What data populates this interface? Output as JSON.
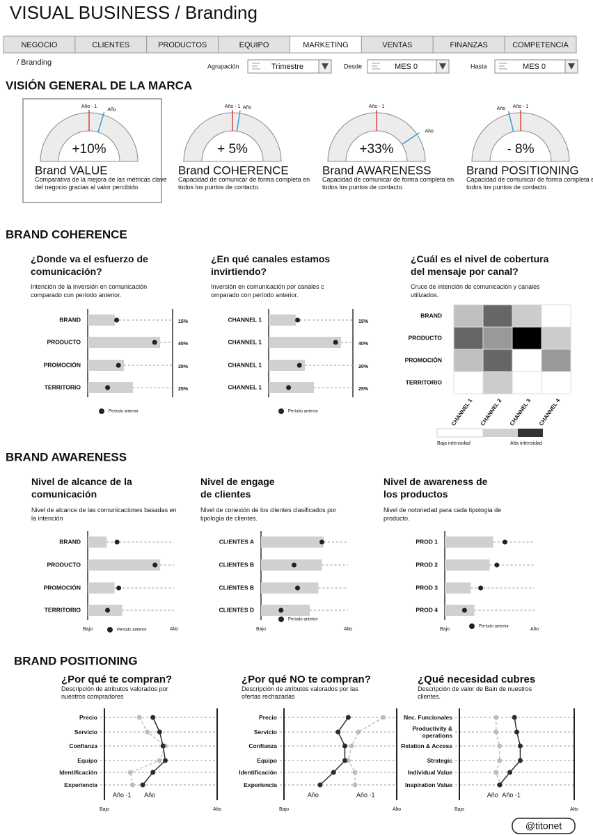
{
  "header": {
    "title": "VISUAL BUSINESS / Branding",
    "breadcrumb": "/ Branding"
  },
  "tabs": {
    "items": [
      "NEGOCIO",
      "CLIENTES",
      "PRODUCTOS",
      "EQUIPO",
      "MARKETING",
      "VENTAS",
      "FINANZAS",
      "COMPETENCIA"
    ],
    "active": 4
  },
  "filters": [
    {
      "label": "Agrupación",
      "value": "Trimestre"
    },
    {
      "label": "Desde",
      "value": "MES 0"
    },
    {
      "label": "Hasta",
      "value": "MES 0"
    }
  ],
  "overview": {
    "title": "VISIÓN GENERAL DE LA MARCA",
    "gauges": [
      {
        "previous_label": "Año - 1",
        "current_label": "Año",
        "value": 10,
        "value_label": "+10%",
        "name": "Brand VALUE",
        "description": "Comparativa de la mejora de las métricas clave del negocio gracias al valor percibido."
      },
      {
        "previous_label": "Año - 1",
        "current_label": "Año",
        "value": 5,
        "value_label": "+ 5%",
        "name": "Brand COHERENCE",
        "description": "Capacidad de comunicar de forma completa en todos los puntos de contacto."
      },
      {
        "previous_label": "Año - 1",
        "current_label": "Año",
        "value": 33,
        "value_label": "+33%",
        "name": "Brand AWARENESS",
        "description": "Capacidad de comunicar de forma completa en todos los puntos de contacto."
      },
      {
        "previous_label": "Año - 1",
        "current_label": "Año",
        "value": -8,
        "value_label": "- 8%",
        "name": "Brand POSITIONING",
        "description": "Capacidad de comunicar de forma completa en todos los puntos de contacto."
      }
    ]
  },
  "coherence": {
    "title": "BRAND COHERENCE",
    "effort": {
      "question": "¿Donde va el esfuerzo de comunicación?",
      "description": "Intención de la inversión en comunicación comparado con período anterior.",
      "categories": [
        "BRAND",
        "PRODUCTO",
        "PROMOCIÓN",
        "TERRITORIO"
      ],
      "values": [
        15,
        40,
        20,
        25
      ],
      "value_labels": [
        "15%",
        "40%",
        "20%",
        "25%"
      ],
      "previous": [
        16,
        37,
        17,
        11
      ],
      "legend": "Período anterior"
    },
    "channels": {
      "question": "¿En qué canales estamos invirtiendo?",
      "description": "Inversión en comunicación por canales c omparado con período anterior.",
      "categories": [
        "CHANNEL 1",
        "CHANNEL 1",
        "CHANNEL 1",
        "CHANNEL 1"
      ],
      "values": [
        15,
        40,
        20,
        25
      ],
      "value_labels": [
        "15%",
        "40%",
        "20%",
        "25%"
      ],
      "previous": [
        16,
        37,
        17,
        11
      ],
      "legend": "Período anterior"
    },
    "coverage": {
      "question": "¿Cuál es el nivel de cobertura del mensaje por canal?",
      "description": "Cruce de intención de comunicación y canales utilizados.",
      "rows": [
        "BRAND",
        "PRODUCTO",
        "PROMOCIÓN",
        "TERRITORIO"
      ],
      "columns": [
        "CHANNEL 1",
        "CHANNEL 2",
        "CHANNEL 3",
        "CHANNEL 4"
      ],
      "values": [
        [
          25,
          60,
          20,
          0
        ],
        [
          60,
          40,
          100,
          20
        ],
        [
          25,
          60,
          0,
          40
        ],
        [
          0,
          20,
          0,
          0
        ]
      ],
      "legend": {
        "low": "Baja intensidad",
        "high": "Alta intensidad"
      }
    }
  },
  "awareness": {
    "title": "BRAND AWARENESS",
    "panels": [
      {
        "question": "Nivel de alcance de la comunicación",
        "description": "Nivel de alcance de las comunicaciones basadas en la intención",
        "categories": [
          "BRAND",
          "PRODUCTO",
          "PROMOCIÓN",
          "TERRITORIO"
        ],
        "values": [
          22,
          84,
          31,
          40
        ],
        "previous": [
          34,
          78,
          36,
          23
        ],
        "axis_labels": [
          "Bajo",
          "Alto"
        ],
        "legend": "Periodo anterior"
      },
      {
        "question": "Nivel de engage de clientes",
        "description": "Nivel de conexión de los clientes clasificados por tipología de clientes.",
        "categories": [
          "CLIENTES A",
          "CLIENTES B",
          "CLIENTES B",
          "CLIENTES D"
        ],
        "values": [
          72,
          70,
          66,
          56
        ],
        "previous": [
          70,
          38,
          42,
          23
        ],
        "axis_labels": [
          "Bajo",
          "Alto"
        ],
        "legend": "Periodo anterior"
      },
      {
        "question": "Nivel de awareness de los productos",
        "description": "Nivel de notoriedad para cada tipología de producto.",
        "categories": [
          "PROD 1",
          "PROD 2",
          "PROD 3",
          "PROD 4"
        ],
        "values": [
          54,
          50,
          29,
          33
        ],
        "previous": [
          67,
          58,
          40,
          22
        ],
        "axis_labels": [
          "Bajo",
          "Alto"
        ],
        "legend": "Período anterior"
      }
    ]
  },
  "positioning": {
    "title": "BRAND POSITIONING",
    "panels": [
      {
        "question": "¿Por qué te compran?",
        "description": "Descripción de atributos valorados por nuestros compradores",
        "attributes": [
          "Precio",
          "Servicio",
          "Confianza",
          "Equipo",
          "Identificación",
          "Experiencia"
        ],
        "series": [
          {
            "name": "Año -1",
            "color": "#bdbdbd",
            "dashed": true,
            "values": [
              31,
              38,
              54,
              49,
              23,
              25
            ]
          },
          {
            "name": "Año",
            "color": "#2b2b2b",
            "dashed": false,
            "values": [
              43,
              49,
              52,
              54,
              43,
              34
            ]
          }
        ],
        "axis_labels": [
          "Bajo",
          "Alto"
        ]
      },
      {
        "question": "¿Por qué NO te compran?",
        "description": "Descripción de atributos valorados por las ofertas rechazadas",
        "attributes": [
          "Precio",
          "Servicio",
          "Confianza",
          "Equipo",
          "Identificación",
          "Experiencia"
        ],
        "series": [
          {
            "name": "Año -1",
            "color": "#bdbdbd",
            "dashed": true,
            "values": [
              88,
              66,
              60,
              57,
              63,
              63
            ]
          },
          {
            "name": "Año",
            "color": "#2b2b2b",
            "dashed": false,
            "values": [
              57,
              48,
              54,
              54,
              44,
              32
            ]
          }
        ],
        "axis_labels": [
          "Bajo",
          "Alto"
        ]
      },
      {
        "question": "¿Qué necesidad cubres",
        "description": "Descripción de valor de Bain de nuestros clientes.",
        "attributes": [
          "Nec. Funcionales",
          "Productivity & operations",
          "Relation & Access",
          "Strategic",
          "Individual Value",
          "Inspiration Value"
        ],
        "series": [
          {
            "name": "Año -1",
            "color": "#bdbdbd",
            "dashed": true,
            "values": [
              32,
              32,
              35,
              35,
              32,
              36
            ]
          },
          {
            "name": "Año",
            "color": "#2b2b2b",
            "dashed": false,
            "values": [
              48,
              50,
              53,
              53,
              44,
              35
            ]
          }
        ],
        "axis_labels": [
          "Bajo",
          "Alto"
        ]
      }
    ]
  },
  "footer": "@titonet"
}
